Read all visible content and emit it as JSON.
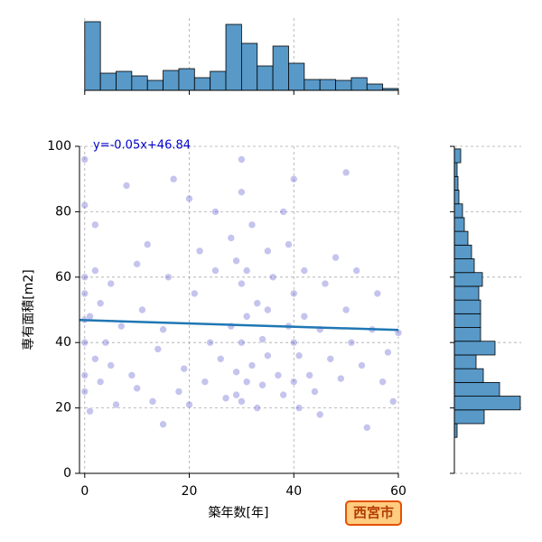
{
  "chart_data": [
    {
      "type": "scatter",
      "xlabel": "築年数[年]",
      "ylabel": "専有面積[m2]",
      "annotation": "西宮市",
      "color": "#3a3ac8",
      "grid": true,
      "xlim": [
        -1,
        60
      ],
      "ylim": [
        0,
        100
      ],
      "xticks": [
        0,
        20,
        40,
        60
      ],
      "yticks": [
        0,
        20,
        40,
        60,
        80,
        100
      ],
      "regression": {
        "label": "y=-0.05x+46.84",
        "slope": -0.05,
        "intercept": 46.84,
        "color": "#1f77b4"
      },
      "x": [
        0,
        0,
        0,
        0,
        0,
        0,
        0,
        0,
        1,
        1,
        2,
        2,
        3,
        3,
        4,
        5,
        5,
        6,
        7,
        8,
        9,
        10,
        11,
        12,
        13,
        14,
        15,
        16,
        17,
        18,
        19,
        20,
        21,
        22,
        23,
        24,
        25,
        26,
        27,
        28,
        28,
        29,
        29,
        29,
        30,
        30,
        30,
        30,
        31,
        31,
        31,
        32,
        32,
        33,
        33,
        34,
        34,
        35,
        35,
        36,
        37,
        38,
        38,
        39,
        39,
        40,
        40,
        40,
        41,
        41,
        42,
        42,
        43,
        44,
        45,
        46,
        47,
        48,
        49,
        50,
        51,
        52,
        53,
        54,
        55,
        56,
        57,
        58,
        59,
        60,
        2,
        10,
        20,
        30,
        40,
        50,
        15,
        25,
        35,
        45
      ],
      "y": [
        96,
        82,
        60,
        55,
        47,
        40,
        30,
        25,
        48,
        19,
        62,
        35,
        28,
        52,
        40,
        33,
        58,
        21,
        45,
        88,
        30,
        26,
        50,
        70,
        22,
        38,
        44,
        60,
        90,
        25,
        32,
        21,
        55,
        68,
        28,
        40,
        80,
        35,
        23,
        72,
        45,
        65,
        31,
        24,
        58,
        40,
        22,
        86,
        48,
        28,
        62,
        33,
        76,
        20,
        52,
        41,
        27,
        68,
        36,
        60,
        30,
        80,
        24,
        45,
        70,
        28,
        40,
        55,
        20,
        36,
        62,
        48,
        30,
        25,
        44,
        58,
        35,
        66,
        29,
        50,
        40,
        62,
        33,
        14,
        44,
        55,
        28,
        37,
        22,
        43,
        76,
        64,
        84,
        96,
        90,
        92,
        15,
        62,
        50,
        18
      ]
    },
    {
      "type": "histogram",
      "orientation": "vertical",
      "color": "#5899c8",
      "bins": [
        0,
        3,
        6,
        9,
        12,
        15,
        18,
        21,
        24,
        27,
        30,
        33,
        36,
        39,
        42,
        45,
        48,
        51,
        54,
        57,
        60
      ],
      "counts": [
        76,
        19,
        21,
        16,
        11,
        22,
        24,
        14,
        21,
        73,
        52,
        27,
        49,
        30,
        12,
        12,
        11,
        14,
        7,
        2
      ],
      "ylim": [
        0,
        80
      ]
    },
    {
      "type": "histogram",
      "orientation": "horizontal",
      "color": "#5899c8",
      "bins": [
        11,
        15.2,
        19.4,
        23.6,
        27.8,
        32,
        36.2,
        40.4,
        44.6,
        48.8,
        53,
        57.2,
        61.4,
        65.6,
        69.8,
        74,
        78.2,
        82.4,
        86.6,
        90.8,
        95,
        99.2
      ],
      "counts": [
        3,
        33,
        73,
        50,
        32,
        24,
        45,
        29,
        29,
        29,
        27,
        31,
        22,
        19,
        15,
        11,
        9,
        5,
        4,
        3,
        7
      ],
      "xlim": [
        0,
        74
      ]
    }
  ]
}
